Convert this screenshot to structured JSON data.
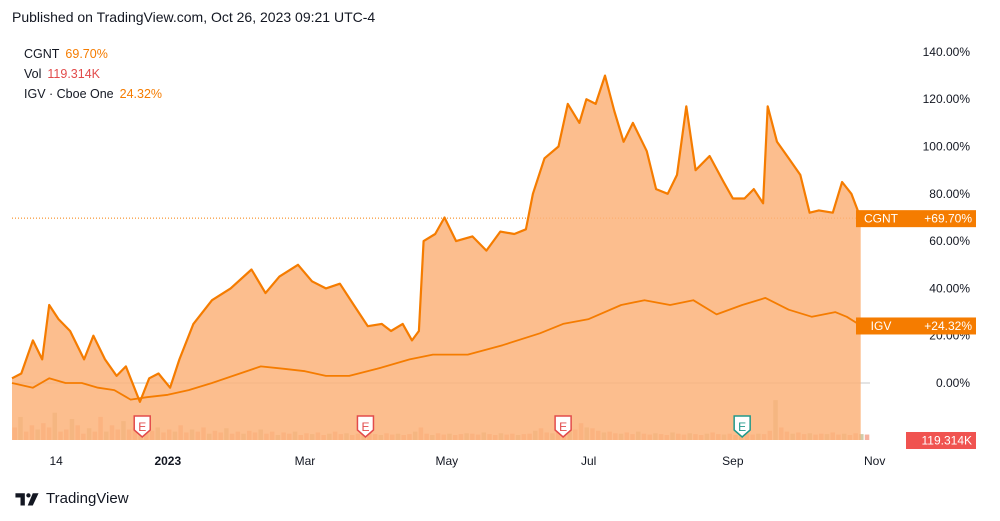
{
  "header": {
    "published": "Published on TradingView.com, Oct 26, 2023 09:21 UTC-4"
  },
  "legend": [
    {
      "symbol": "CGNT",
      "value": "69.70%",
      "color": "#f57c00"
    },
    {
      "symbol": "Vol",
      "value": "119.314K",
      "color": "#e24b4b"
    },
    {
      "symbol": "IGV · Cboe One",
      "value": "24.32%",
      "color": "#f57c00"
    }
  ],
  "brand": {
    "name": "TradingView"
  },
  "colors": {
    "main_line": "#f57c00",
    "area_fill": "#fbb37a",
    "igv_line": "#f57c00",
    "volume_up": "#c7c29a",
    "volume_down": "#f5a58e",
    "earnings_red": "#e24b4b",
    "earnings_teal": "#22998a",
    "vol_tag": "#f05350"
  },
  "chart_data": {
    "type": "area",
    "y_axis": {
      "ticks": [
        "140.00%",
        "120.00%",
        "100.00%",
        "80.00%",
        "60.00%",
        "40.00%",
        "20.00%",
        "0.00%"
      ],
      "tick_values": [
        140,
        120,
        100,
        80,
        60,
        40,
        20,
        0
      ],
      "range": [
        -10,
        145
      ],
      "unit": "%"
    },
    "x_axis": {
      "labels": [
        "14",
        "2023",
        "Mar",
        "May",
        "Jul",
        "Sep",
        "Nov"
      ],
      "label_dates": [
        "2022-11-14",
        "2023-01-01",
        "2023-03-01",
        "2023-05-01",
        "2023-07-01",
        "2023-09-01",
        "2023-11-01"
      ],
      "range": [
        "2022-10-26",
        "2023-11-05"
      ]
    },
    "series": [
      {
        "name": "CGNT",
        "style": "area",
        "last_label": "CGNT",
        "last_value_label": "+69.70%",
        "points": [
          [
            "2022-10-26",
            2
          ],
          [
            "2022-10-30",
            4
          ],
          [
            "2022-11-04",
            18
          ],
          [
            "2022-11-08",
            10
          ],
          [
            "2022-11-11",
            33
          ],
          [
            "2022-11-15",
            27
          ],
          [
            "2022-11-20",
            22
          ],
          [
            "2022-11-26",
            10
          ],
          [
            "2022-11-30",
            20
          ],
          [
            "2022-12-05",
            10
          ],
          [
            "2022-12-10",
            3
          ],
          [
            "2022-12-14",
            7
          ],
          [
            "2022-12-20",
            -8
          ],
          [
            "2022-12-24",
            2
          ],
          [
            "2022-12-28",
            4
          ],
          [
            "2023-01-02",
            -2
          ],
          [
            "2023-01-06",
            10
          ],
          [
            "2023-01-12",
            25
          ],
          [
            "2023-01-20",
            35
          ],
          [
            "2023-01-28",
            40
          ],
          [
            "2023-02-06",
            48
          ],
          [
            "2023-02-12",
            38
          ],
          [
            "2023-02-18",
            45
          ],
          [
            "2023-02-26",
            50
          ],
          [
            "2023-03-04",
            43
          ],
          [
            "2023-03-10",
            40
          ],
          [
            "2023-03-16",
            42
          ],
          [
            "2023-03-22",
            33
          ],
          [
            "2023-03-28",
            24
          ],
          [
            "2023-04-03",
            25
          ],
          [
            "2023-04-07",
            22
          ],
          [
            "2023-04-12",
            25
          ],
          [
            "2023-04-16",
            18
          ],
          [
            "2023-04-19",
            22
          ],
          [
            "2023-04-21",
            60
          ],
          [
            "2023-04-26",
            63
          ],
          [
            "2023-04-30",
            70
          ],
          [
            "2023-05-05",
            60
          ],
          [
            "2023-05-12",
            62
          ],
          [
            "2023-05-18",
            56
          ],
          [
            "2023-05-24",
            64
          ],
          [
            "2023-05-30",
            63
          ],
          [
            "2023-06-04",
            65
          ],
          [
            "2023-06-07",
            80
          ],
          [
            "2023-06-12",
            95
          ],
          [
            "2023-06-18",
            100
          ],
          [
            "2023-06-22",
            118
          ],
          [
            "2023-06-27",
            110
          ],
          [
            "2023-06-30",
            120
          ],
          [
            "2023-07-04",
            118
          ],
          [
            "2023-07-08",
            130
          ],
          [
            "2023-07-12",
            115
          ],
          [
            "2023-07-16",
            102
          ],
          [
            "2023-07-20",
            110
          ],
          [
            "2023-07-26",
            98
          ],
          [
            "2023-07-30",
            82
          ],
          [
            "2023-08-04",
            80
          ],
          [
            "2023-08-08",
            88
          ],
          [
            "2023-08-12",
            117
          ],
          [
            "2023-08-16",
            90
          ],
          [
            "2023-08-22",
            96
          ],
          [
            "2023-08-28",
            85
          ],
          [
            "2023-09-01",
            78
          ],
          [
            "2023-09-06",
            78
          ],
          [
            "2023-09-10",
            82
          ],
          [
            "2023-09-14",
            76
          ],
          [
            "2023-09-16",
            117
          ],
          [
            "2023-09-20",
            102
          ],
          [
            "2023-09-25",
            95
          ],
          [
            "2023-09-30",
            88
          ],
          [
            "2023-10-04",
            72
          ],
          [
            "2023-10-08",
            73
          ],
          [
            "2023-10-14",
            72
          ],
          [
            "2023-10-18",
            85
          ],
          [
            "2023-10-22",
            80
          ],
          [
            "2023-10-26",
            69.7
          ]
        ]
      },
      {
        "name": "IGV",
        "style": "line",
        "last_label": "IGV",
        "last_value_label": "+24.32%",
        "points": [
          [
            "2022-10-26",
            0
          ],
          [
            "2022-11-04",
            -2
          ],
          [
            "2022-11-11",
            2
          ],
          [
            "2022-11-18",
            0
          ],
          [
            "2022-11-25",
            0
          ],
          [
            "2022-12-02",
            -2
          ],
          [
            "2022-12-09",
            -3
          ],
          [
            "2022-12-16",
            -7
          ],
          [
            "2022-12-23",
            -6
          ],
          [
            "2023-01-01",
            -5
          ],
          [
            "2023-01-10",
            -3
          ],
          [
            "2023-01-20",
            0
          ],
          [
            "2023-02-01",
            4
          ],
          [
            "2023-02-10",
            7
          ],
          [
            "2023-02-20",
            6
          ],
          [
            "2023-03-01",
            5
          ],
          [
            "2023-03-10",
            3
          ],
          [
            "2023-03-20",
            3
          ],
          [
            "2023-04-01",
            6
          ],
          [
            "2023-04-15",
            10
          ],
          [
            "2023-04-25",
            12
          ],
          [
            "2023-05-10",
            12
          ],
          [
            "2023-05-25",
            16
          ],
          [
            "2023-06-10",
            21
          ],
          [
            "2023-06-20",
            25
          ],
          [
            "2023-07-01",
            27
          ],
          [
            "2023-07-15",
            33
          ],
          [
            "2023-07-25",
            35
          ],
          [
            "2023-08-05",
            33
          ],
          [
            "2023-08-15",
            35
          ],
          [
            "2023-08-25",
            29
          ],
          [
            "2023-09-05",
            33
          ],
          [
            "2023-09-15",
            36
          ],
          [
            "2023-09-25",
            31
          ],
          [
            "2023-10-05",
            28
          ],
          [
            "2023-10-15",
            30
          ],
          [
            "2023-10-20",
            28
          ],
          [
            "2023-10-26",
            24.32
          ]
        ]
      }
    ],
    "current_value_line": 69.7,
    "volume": {
      "last_value_label": "119.314K",
      "max_relative": 1.0,
      "bars": [
        0.3,
        0.55,
        0.2,
        0.35,
        0.25,
        0.4,
        0.3,
        0.65,
        0.2,
        0.25,
        0.5,
        0.35,
        0.15,
        0.28,
        0.2,
        0.55,
        0.2,
        0.35,
        0.25,
        0.45,
        0.25,
        0.3,
        0.2,
        0.4,
        0.22,
        0.3,
        0.18,
        0.25,
        0.2,
        0.35,
        0.18,
        0.25,
        0.2,
        0.3,
        0.15,
        0.22,
        0.18,
        0.28,
        0.15,
        0.2,
        0.15,
        0.22,
        0.18,
        0.25,
        0.15,
        0.2,
        0.12,
        0.18,
        0.15,
        0.2,
        0.12,
        0.16,
        0.14,
        0.18,
        0.12,
        0.15,
        0.2,
        0.14,
        0.16,
        0.12,
        0.15,
        0.13,
        0.18,
        0.14,
        0.12,
        0.16,
        0.13,
        0.15,
        0.12,
        0.14,
        0.2,
        0.3,
        0.15,
        0.12,
        0.16,
        0.13,
        0.15,
        0.12,
        0.14,
        0.16,
        0.15,
        0.13,
        0.18,
        0.14,
        0.12,
        0.16,
        0.13,
        0.15,
        0.12,
        0.14,
        0.15,
        0.22,
        0.28,
        0.18,
        0.16,
        0.2,
        0.3,
        0.35,
        0.25,
        0.4,
        0.3,
        0.28,
        0.22,
        0.18,
        0.2,
        0.16,
        0.15,
        0.18,
        0.14,
        0.2,
        0.15,
        0.13,
        0.16,
        0.14,
        0.12,
        0.18,
        0.15,
        0.13,
        0.16,
        0.14,
        0.12,
        0.15,
        0.18,
        0.14,
        0.13,
        0.15,
        0.12,
        0.14,
        0.16,
        0.13,
        0.15,
        0.14,
        0.22,
        0.95,
        0.3,
        0.2,
        0.15,
        0.18,
        0.14,
        0.16,
        0.13,
        0.15,
        0.14,
        0.18,
        0.13,
        0.15,
        0.12,
        0.16,
        0.14,
        0.13
      ]
    },
    "earnings_markers": [
      {
        "date": "2022-12-21",
        "label": "E",
        "kind": "red"
      },
      {
        "date": "2023-03-27",
        "label": "E",
        "kind": "red"
      },
      {
        "date": "2023-06-20",
        "label": "E",
        "kind": "red"
      },
      {
        "date": "2023-09-05",
        "label": "E",
        "kind": "teal"
      }
    ],
    "legend_placement": "top-left",
    "grid": false
  }
}
